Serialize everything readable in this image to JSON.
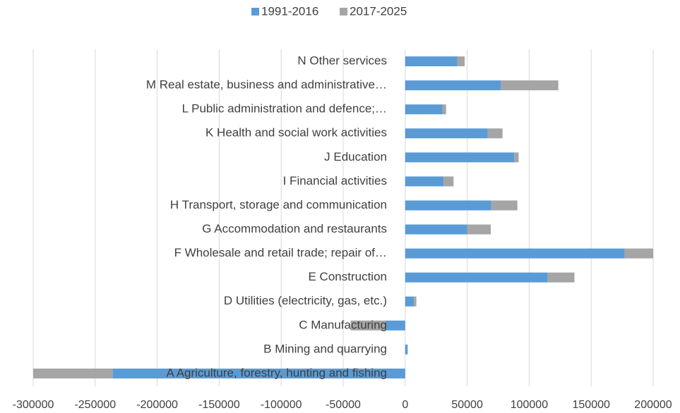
{
  "chart_data": {
    "type": "stacked_bar_horizontal",
    "categories": [
      "A Agriculture, forestry, hunting and fishing",
      "B Mining and quarrying",
      "C Manufacturing",
      "D Utilities (electricity, gas, etc.)",
      "E Construction",
      "F Wholesale and retail trade; repair of…",
      "G Accommodation and restaurants",
      "H Transport, storage and communication",
      "I Financial activities",
      "J Education",
      "K Health and social work activities",
      "L Public administration and defence;…",
      "M Real estate, business and administrative…",
      "N Other services"
    ],
    "series": [
      {
        "name": "1991-2016",
        "color": "#5b9bd5",
        "values": [
          -236000,
          2000,
          -16000,
          7000,
          115000,
          177000,
          50000,
          69500,
          31000,
          88000,
          66500,
          30000,
          77000,
          42000
        ]
      },
      {
        "name": "2017-2025",
        "color": "#a5a5a5",
        "values": [
          -64000,
          0,
          -28000,
          2000,
          21500,
          23000,
          19000,
          21000,
          8000,
          3500,
          12000,
          3000,
          46500,
          6000
        ]
      }
    ],
    "xlim": [
      -300000,
      200000
    ],
    "xticks": [
      -300000,
      -250000,
      -200000,
      -150000,
      -100000,
      -50000,
      0,
      50000,
      100000,
      150000,
      200000
    ],
    "grid": true,
    "legend": "top"
  }
}
